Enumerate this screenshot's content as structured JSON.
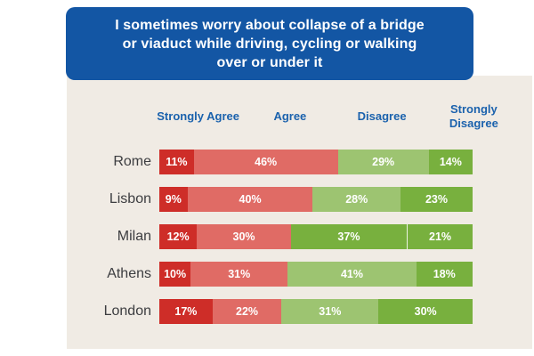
{
  "title": {
    "text": "I sometimes worry about collapse of a bridge or viaduct while driving, cycling or walking over or under it",
    "lines": [
      "I sometimes worry about collapse of a bridge",
      "or viaduct while driving, cycling or walking",
      "over or under it"
    ]
  },
  "columns": [
    "Strongly Agree",
    "Agree",
    "Disagree",
    "Strongly Disagree"
  ],
  "colors": {
    "title_box_bg": "#1356a4",
    "title_text": "#ffffff",
    "column_header_text": "#1b62ad",
    "city_label_text": "#3c3d40",
    "panel_bg": "#f0ebe4",
    "page_bg": "#ffffff",
    "strongly_agree": "#ce2d28",
    "agree": "#e06b65",
    "disagree": "#9dc471",
    "strongly_disagree": "#78b03e",
    "segment_value_text": "#ffffff"
  },
  "rows": [
    {
      "label": "Rome",
      "segments": [
        {
          "value": "11%",
          "color_key": "strongly_agree"
        },
        {
          "value": "46%",
          "color_key": "agree"
        },
        {
          "value": "29%",
          "color_key": "disagree"
        },
        {
          "value": "14%",
          "color_key": "strongly_disagree"
        }
      ]
    },
    {
      "label": "Lisbon",
      "segments": [
        {
          "value": "9%",
          "color_key": "strongly_agree"
        },
        {
          "value": "40%",
          "color_key": "agree"
        },
        {
          "value": "28%",
          "color_key": "disagree"
        },
        {
          "value": "23%",
          "color_key": "strongly_disagree"
        }
      ]
    },
    {
      "label": "Milan",
      "segments": [
        {
          "value": "12%",
          "color_key": "strongly_agree"
        },
        {
          "value": "30%",
          "color_key": "agree"
        },
        {
          "value": "37%",
          "color_key": "strongly_disagree"
        },
        {
          "value": "21%",
          "color_key": "strongly_disagree",
          "divider_before": true
        }
      ]
    },
    {
      "label": "Athens",
      "segments": [
        {
          "value": "10%",
          "color_key": "strongly_agree"
        },
        {
          "value": "31%",
          "color_key": "agree"
        },
        {
          "value": "41%",
          "color_key": "disagree"
        },
        {
          "value": "18%",
          "color_key": "strongly_disagree"
        }
      ]
    },
    {
      "label": "London",
      "segments": [
        {
          "value": "17%",
          "color_key": "strongly_agree"
        },
        {
          "value": "22%",
          "color_key": "agree"
        },
        {
          "value": "31%",
          "color_key": "disagree"
        },
        {
          "value": "30%",
          "color_key": "strongly_disagree"
        }
      ]
    }
  ],
  "chart_data": {
    "type": "bar",
    "stacked": true,
    "orientation": "horizontal",
    "title": "I sometimes worry about collapse of a bridge or viaduct while driving, cycling or walking over or under it",
    "categories": [
      "Rome",
      "Lisbon",
      "Milan",
      "Athens",
      "London"
    ],
    "series": [
      {
        "name": "Strongly Agree",
        "values": [
          11,
          9,
          12,
          10,
          17
        ]
      },
      {
        "name": "Agree",
        "values": [
          46,
          40,
          30,
          31,
          22
        ]
      },
      {
        "name": "Disagree",
        "values": [
          29,
          28,
          37,
          41,
          31
        ]
      },
      {
        "name": "Strongly Disagree",
        "values": [
          14,
          23,
          21,
          18,
          30
        ]
      }
    ],
    "unit": "%",
    "xlim": [
      0,
      100
    ],
    "legend_position": "top",
    "grid": false
  }
}
